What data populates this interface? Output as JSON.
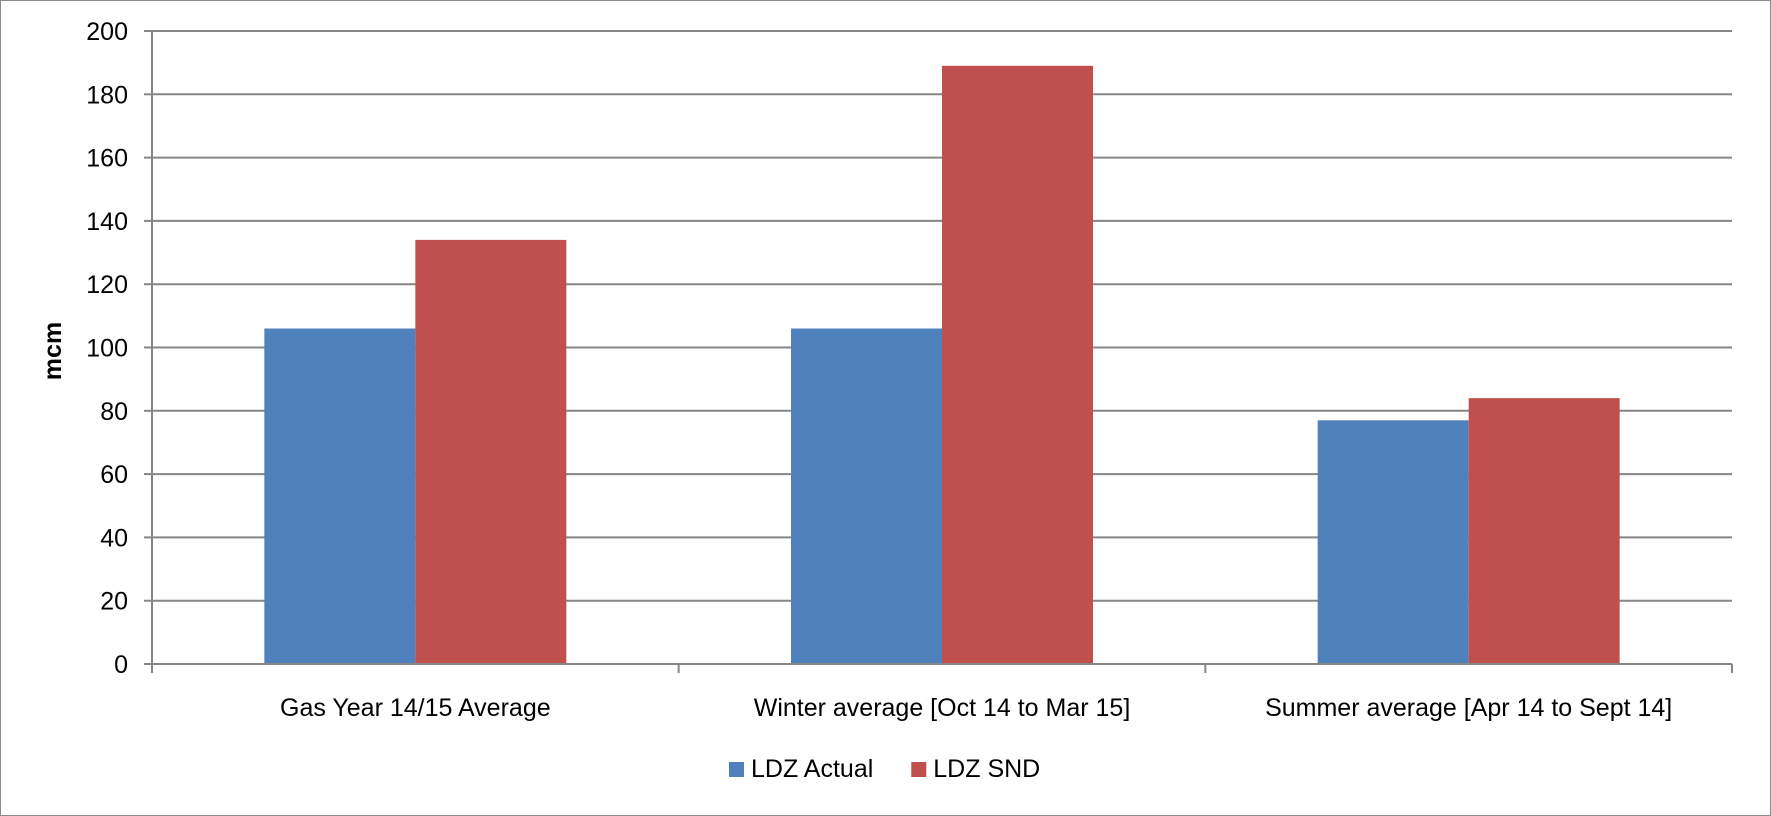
{
  "chart_data": {
    "type": "bar",
    "categories": [
      "Gas Year 14/15 Average",
      "Winter average [Oct 14 to Mar 15]",
      "Summer average [Apr 14 to Sept 14]"
    ],
    "series": [
      {
        "name": "LDZ Actual",
        "color": "#4f81bd",
        "values": [
          106,
          106,
          77
        ]
      },
      {
        "name": "LDZ SND",
        "color": "#c0504d",
        "values": [
          134,
          189,
          84
        ]
      }
    ],
    "xlabel": "",
    "ylabel": "mcm",
    "ylim": [
      0,
      200
    ],
    "yticks": [
      0,
      20,
      40,
      60,
      80,
      100,
      120,
      140,
      160,
      180,
      200
    ],
    "grid": true,
    "legend_position": "bottom"
  }
}
